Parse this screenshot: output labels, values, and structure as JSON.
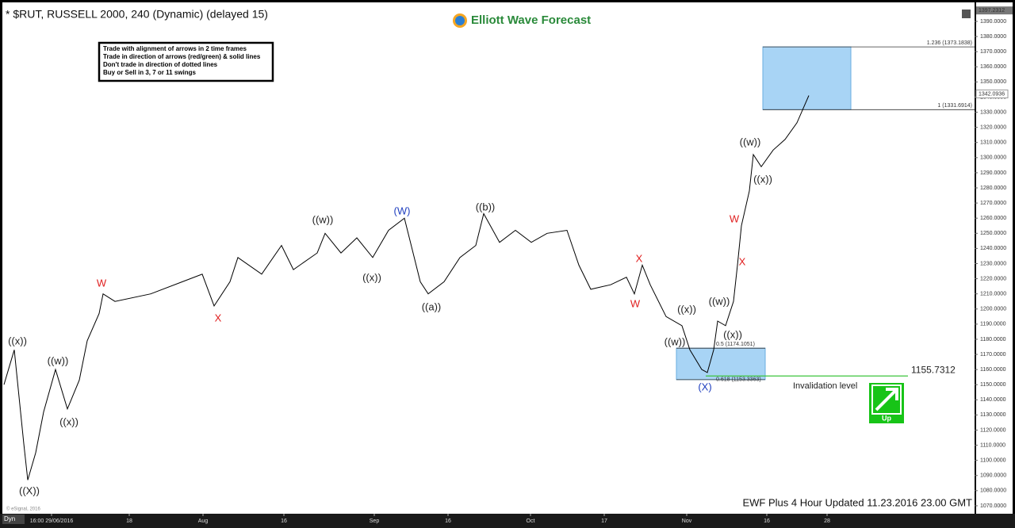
{
  "chart_data": {
    "type": "line",
    "title": "* $RUT, RUSSELL 2000, 240 (Dynamic) (delayed 15)",
    "brand": "Elliott Wave Forecast",
    "rules": [
      "Trade with alignment of arrows in 2 time frames",
      "Trade in direction of arrows (red/green) & solid lines",
      "Don't trade in direction of dotted lines",
      "Buy or Sell in 3, 7 or 11 swings"
    ],
    "footer": "EWF Plus 4 Hour Updated 11.23.2016 23.00 GMT",
    "copyright": "© eSignal, 2016",
    "mode": "Dyn",
    "button": "Up",
    "color": "#000000",
    "x": [
      2.5,
      9,
      15,
      17.5,
      22.5,
      27.5,
      35,
      42.5,
      50,
      55,
      62.5,
      65,
      72.5,
      95,
      115,
      127.5,
      135,
      145,
      150,
      165,
      177.5,
      185,
      200,
      205,
      215,
      225,
      235,
      245,
      255,
      260,
      265,
      270,
      280,
      290,
      300,
      305,
      315,
      325,
      335,
      345,
      357.5,
      365,
      372.5,
      385,
      395,
      400,
      405,
      410,
      420,
      430,
      435,
      442.5,
      446,
      450,
      452.5,
      457.5,
      462.5,
      465,
      467.5,
      472.5,
      475,
      480,
      487.5,
      495,
      502.5,
      510
    ],
    "values": [
      1150,
      1173,
      1111,
      1087,
      1105,
      1132,
      1160,
      1134,
      1153,
      1179,
      1197,
      1210,
      1205,
      1210,
      1218,
      1223,
      1202,
      1218,
      1234,
      1223,
      1242,
      1226,
      1237,
      1250,
      1237,
      1247,
      1234,
      1252,
      1260,
      1239,
      1218,
      1210,
      1218,
      1234,
      1242,
      1263,
      1244,
      1252,
      1244,
      1250,
      1252,
      1229,
      1213,
      1216,
      1221,
      1210,
      1229,
      1216,
      1195,
      1189,
      1173,
      1160,
      1158,
      1173,
      1192,
      1189,
      1205,
      1229,
      1255,
      1278,
      1302,
      1294,
      1305,
      1312,
      1323,
      1341
    ],
    "xlim": [
      0,
      615
    ],
    "ylim": [
      1065,
      1400
    ],
    "xticks": [
      {
        "value": 32.5,
        "label": "16:00 29/06/2016"
      },
      {
        "value": 81.5,
        "label": "18"
      },
      {
        "value": 128,
        "label": "Aug"
      },
      {
        "value": 179,
        "label": "16"
      },
      {
        "value": 236,
        "label": "Sep"
      },
      {
        "value": 282.5,
        "label": "16"
      },
      {
        "value": 334.5,
        "label": "Oct"
      },
      {
        "value": 381,
        "label": "17"
      },
      {
        "value": 433,
        "label": "Nov"
      },
      {
        "value": 483.5,
        "label": "16"
      },
      {
        "value": 521.5,
        "label": "28"
      }
    ],
    "yticks": [
      {
        "value": 1070,
        "label": "1070.0000"
      },
      {
        "value": 1080,
        "label": "1080.0000"
      },
      {
        "value": 1090,
        "label": "1090.0000"
      },
      {
        "value": 1100,
        "label": "1100.0000"
      },
      {
        "value": 1110,
        "label": "1110.0000"
      },
      {
        "value": 1120,
        "label": "1120.0000"
      },
      {
        "value": 1130,
        "label": "1130.0000"
      },
      {
        "value": 1140,
        "label": "1140.0000"
      },
      {
        "value": 1150,
        "label": "1150.0000"
      },
      {
        "value": 1160,
        "label": "1160.0000"
      },
      {
        "value": 1170,
        "label": "1170.0000"
      },
      {
        "value": 1180,
        "label": "1180.0000"
      },
      {
        "value": 1190,
        "label": "1190.0000"
      },
      {
        "value": 1200,
        "label": "1200.0000"
      },
      {
        "value": 1210,
        "label": "1210.0000"
      },
      {
        "value": 1220,
        "label": "1220.0000"
      },
      {
        "value": 1230,
        "label": "1230.0000"
      },
      {
        "value": 1240,
        "label": "1240.0000"
      },
      {
        "value": 1250,
        "label": "1250.0000"
      },
      {
        "value": 1260,
        "label": "1260.0000"
      },
      {
        "value": 1270,
        "label": "1270.0000"
      },
      {
        "value": 1280,
        "label": "1280.0000"
      },
      {
        "value": 1290,
        "label": "1290.0000"
      },
      {
        "value": 1300,
        "label": "1300.0000"
      },
      {
        "value": 1310,
        "label": "1310.0000"
      },
      {
        "value": 1320,
        "label": "1320.0000"
      },
      {
        "value": 1330,
        "label": "1330.0000"
      },
      {
        "value": 1340,
        "label": "1340.0000"
      },
      {
        "value": 1350,
        "label": "1350.0000"
      },
      {
        "value": 1360,
        "label": "1360.0000"
      },
      {
        "value": 1370,
        "label": "1370.0000"
      },
      {
        "value": 1380,
        "label": "1380.0000"
      },
      {
        "value": 1390,
        "label": "1390.0000"
      }
    ],
    "last_price": 1397.2312,
    "marker_price": 1342.0936,
    "upper_zone": [
      {
        "value": 1373.1838,
        "label": "1.236 (1373.1838)"
      },
      {
        "value": 1331.6914,
        "label": "1 (1331.6914)"
      }
    ],
    "lower_zone": [
      {
        "value": 1174.1051,
        "label": "0.5 (1174.1051)"
      },
      {
        "value": 1153.3363,
        "label": "0.618 (1153.3363)"
      }
    ],
    "invalidation": 1155.7312,
    "invalidation_label": "Invalidation level",
    "waves": [
      {
        "text": "((x))",
        "color": "#222222"
      },
      {
        "text": "((X))",
        "color": "#222222"
      },
      {
        "text": "((w))",
        "color": "#222222"
      },
      {
        "text": "((x))",
        "color": "#222222"
      },
      {
        "text": "W",
        "color": "#e02020"
      },
      {
        "text": "X",
        "color": "#e02020"
      },
      {
        "text": "((w))",
        "color": "#222222"
      },
      {
        "text": "(W)",
        "color": "#1f3fbf"
      },
      {
        "text": "((x))",
        "color": "#222222"
      },
      {
        "text": "((a))",
        "color": "#222222"
      },
      {
        "text": "((b))",
        "color": "#222222"
      },
      {
        "text": "X",
        "color": "#e02020"
      },
      {
        "text": "W",
        "color": "#e02020"
      },
      {
        "text": "((x))",
        "color": "#222222"
      },
      {
        "text": "((w))",
        "color": "#222222"
      },
      {
        "text": "((w))",
        "color": "#222222"
      },
      {
        "text": "((x))",
        "color": "#222222"
      },
      {
        "text": "(X)",
        "color": "#1f3fbf"
      },
      {
        "text": "W",
        "color": "#e02020"
      },
      {
        "text": "X",
        "color": "#e02020"
      },
      {
        "text": "((w))",
        "color": "#222222"
      },
      {
        "text": "((x))",
        "color": "#222222"
      }
    ]
  }
}
